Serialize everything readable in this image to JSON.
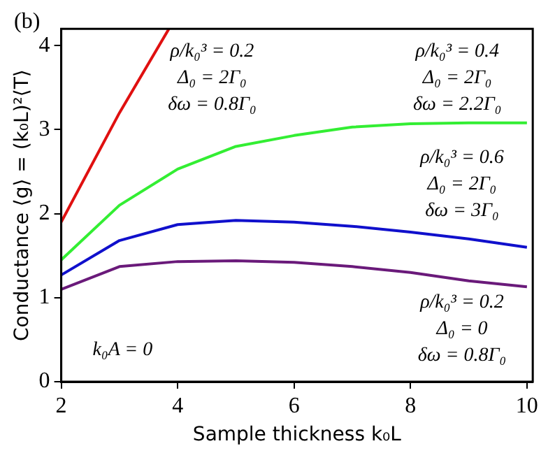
{
  "chart_data": {
    "type": "line",
    "xlabel": "Sample thickness k₀L",
    "ylabel": "Conductance ⟨g⟩ = (k₀L)²⟨T⟩",
    "x": [
      2,
      3,
      4,
      5,
      6,
      7,
      8,
      9,
      10
    ],
    "series": [
      {
        "color": "#e01010",
        "x": [
          2,
          3,
          3.85
        ],
        "values": [
          1.9,
          3.2,
          4.2
        ]
      },
      {
        "color": "#33ee33",
        "values": [
          1.45,
          2.1,
          2.53,
          2.8,
          2.93,
          3.03,
          3.07,
          3.08,
          3.08
        ]
      },
      {
        "color": "#1010cc",
        "values": [
          1.27,
          1.68,
          1.87,
          1.92,
          1.9,
          1.85,
          1.78,
          1.7,
          1.6
        ]
      },
      {
        "color": "#6a1a7a",
        "values": [
          1.1,
          1.37,
          1.43,
          1.44,
          1.42,
          1.37,
          1.3,
          1.2,
          1.13
        ]
      }
    ],
    "xlim": [
      2,
      10.1
    ],
    "xticks": [
      2,
      4,
      6,
      8,
      10
    ],
    "ylim": [
      0,
      4.2
    ],
    "yticks": [
      0,
      1,
      2,
      3,
      4
    ],
    "grid": false,
    "legend": false,
    "marker": "none",
    "line_style": "solid",
    "annotations": [
      "(b)",
      "ρ/k₀³ = 0.2\nΔ₀ = 2Γ₀\nδω = 0.8Γ₀",
      "ρ/k₀³ = 0.4\nΔ₀ = 2Γ₀\nδω = 2.2Γ₀",
      "ρ/k₀³ = 0.6\nΔ₀ = 2Γ₀\nδω = 3Γ₀",
      "ρ/k₀³ = 0.2\nΔ₀ = 0\nδω = 0.8Γ₀",
      "k₀A = 0"
    ]
  }
}
